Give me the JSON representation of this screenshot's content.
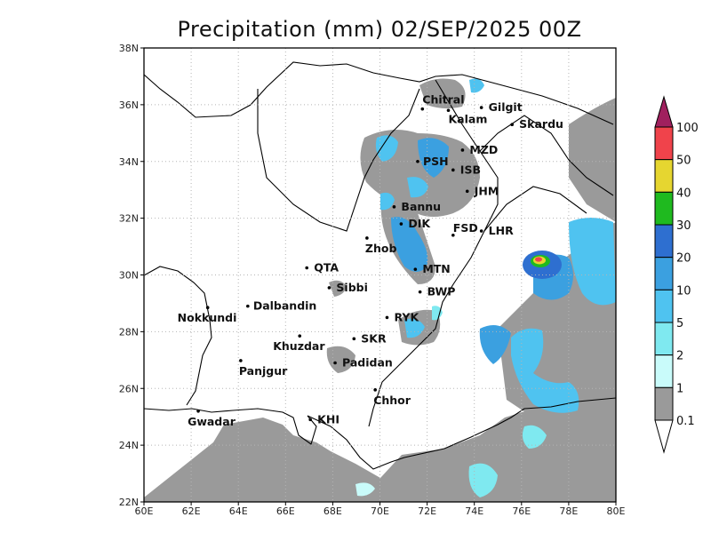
{
  "title": "Precipitation (mm) 02/SEP/2025 00Z",
  "x_ticks": [
    "60E",
    "62E",
    "64E",
    "66E",
    "68E",
    "70E",
    "72E",
    "74E",
    "76E",
    "78E",
    "80E"
  ],
  "y_ticks": [
    "22N",
    "24N",
    "26N",
    "28N",
    "30N",
    "32N",
    "34N",
    "36N",
    "38N"
  ],
  "colorbar": {
    "labels": [
      "0.1",
      "1",
      "2",
      "5",
      "10",
      "20",
      "30",
      "40",
      "50",
      "100"
    ],
    "colors": [
      "#9a9a9a",
      "#c9fbfa",
      "#7fe9f0",
      "#4fc3f0",
      "#3ba0e0",
      "#2e6fd0",
      "#1fba1f",
      "#e6d630",
      "#f0434b",
      "#a0205e"
    ]
  },
  "cities": [
    {
      "name": "Chitral",
      "lon": 71.8,
      "lat": 35.85
    },
    {
      "name": "Gilgit",
      "lon": 74.3,
      "lat": 35.9
    },
    {
      "name": "Kalam",
      "lon": 72.9,
      "lat": 35.8
    },
    {
      "name": "Skardu",
      "lon": 75.6,
      "lat": 35.3
    },
    {
      "name": "MZD",
      "lon": 73.5,
      "lat": 34.4
    },
    {
      "name": "PSH",
      "lon": 71.6,
      "lat": 34.0
    },
    {
      "name": "ISB",
      "lon": 73.1,
      "lat": 33.7
    },
    {
      "name": "JHM",
      "lon": 73.7,
      "lat": 32.95
    },
    {
      "name": "Bannu",
      "lon": 70.6,
      "lat": 32.4
    },
    {
      "name": "DIK",
      "lon": 70.9,
      "lat": 31.8
    },
    {
      "name": "FSD",
      "lon": 73.1,
      "lat": 31.4
    },
    {
      "name": "LHR",
      "lon": 74.3,
      "lat": 31.55
    },
    {
      "name": "Zhob",
      "lon": 69.45,
      "lat": 31.3
    },
    {
      "name": "QTA",
      "lon": 66.9,
      "lat": 30.25
    },
    {
      "name": "MTN",
      "lon": 71.5,
      "lat": 30.2
    },
    {
      "name": "Sibbi",
      "lon": 67.85,
      "lat": 29.55
    },
    {
      "name": "BWP",
      "lon": 71.7,
      "lat": 29.4
    },
    {
      "name": "Nokkundi",
      "lon": 62.7,
      "lat": 28.85
    },
    {
      "name": "Dalbandin",
      "lon": 64.4,
      "lat": 28.9
    },
    {
      "name": "RYK",
      "lon": 70.3,
      "lat": 28.5
    },
    {
      "name": "Khuzdar",
      "lon": 66.6,
      "lat": 27.85
    },
    {
      "name": "SKR",
      "lon": 68.9,
      "lat": 27.75
    },
    {
      "name": "Panjgur",
      "lon": 64.1,
      "lat": 26.98
    },
    {
      "name": "Padidan",
      "lon": 68.1,
      "lat": 26.9
    },
    {
      "name": "Chhor",
      "lon": 69.8,
      "lat": 25.95
    },
    {
      "name": "KHI",
      "lon": 67.05,
      "lat": 24.9
    },
    {
      "name": "Gwadar",
      "lon": 62.3,
      "lat": 25.2
    }
  ]
}
